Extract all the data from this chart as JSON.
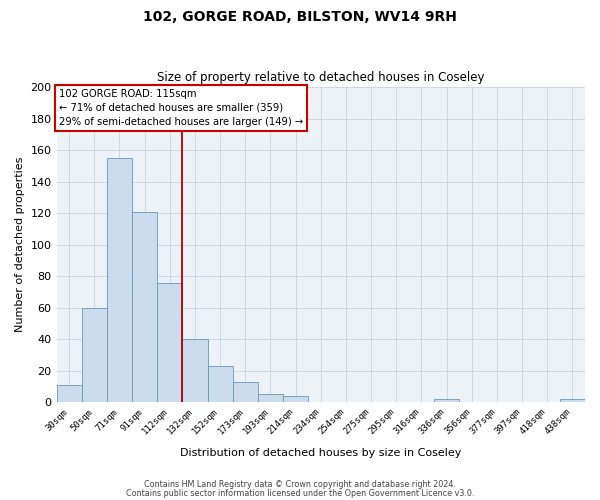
{
  "title": "102, GORGE ROAD, BILSTON, WV14 9RH",
  "subtitle": "Size of property relative to detached houses in Coseley",
  "xlabel": "Distribution of detached houses by size in Coseley",
  "ylabel": "Number of detached properties",
  "bar_labels": [
    "30sqm",
    "50sqm",
    "71sqm",
    "91sqm",
    "112sqm",
    "132sqm",
    "152sqm",
    "173sqm",
    "193sqm",
    "214sqm",
    "234sqm",
    "254sqm",
    "275sqm",
    "295sqm",
    "316sqm",
    "336sqm",
    "356sqm",
    "377sqm",
    "397sqm",
    "418sqm",
    "438sqm"
  ],
  "bar_values": [
    11,
    60,
    155,
    121,
    76,
    40,
    23,
    13,
    5,
    4,
    0,
    0,
    0,
    0,
    0,
    2,
    0,
    0,
    0,
    0,
    2
  ],
  "bar_color": "#cddcec",
  "bar_edge_color": "#6699bb",
  "ylim": [
    0,
    200
  ],
  "yticks": [
    0,
    20,
    40,
    60,
    80,
    100,
    120,
    140,
    160,
    180,
    200
  ],
  "vline_color": "#aa0000",
  "annotation_title": "102 GORGE ROAD: 115sqm",
  "annotation_line1": "← 71% of detached houses are smaller (359)",
  "annotation_line2": "29% of semi-detached houses are larger (149) →",
  "annotation_box_color": "#ffffff",
  "annotation_box_edge": "#cc0000",
  "footer_line1": "Contains HM Land Registry data © Crown copyright and database right 2024.",
  "footer_line2": "Contains public sector information licensed under the Open Government Licence v3.0.",
  "background_color": "#edf2f7",
  "grid_color": "#c8d4e0"
}
